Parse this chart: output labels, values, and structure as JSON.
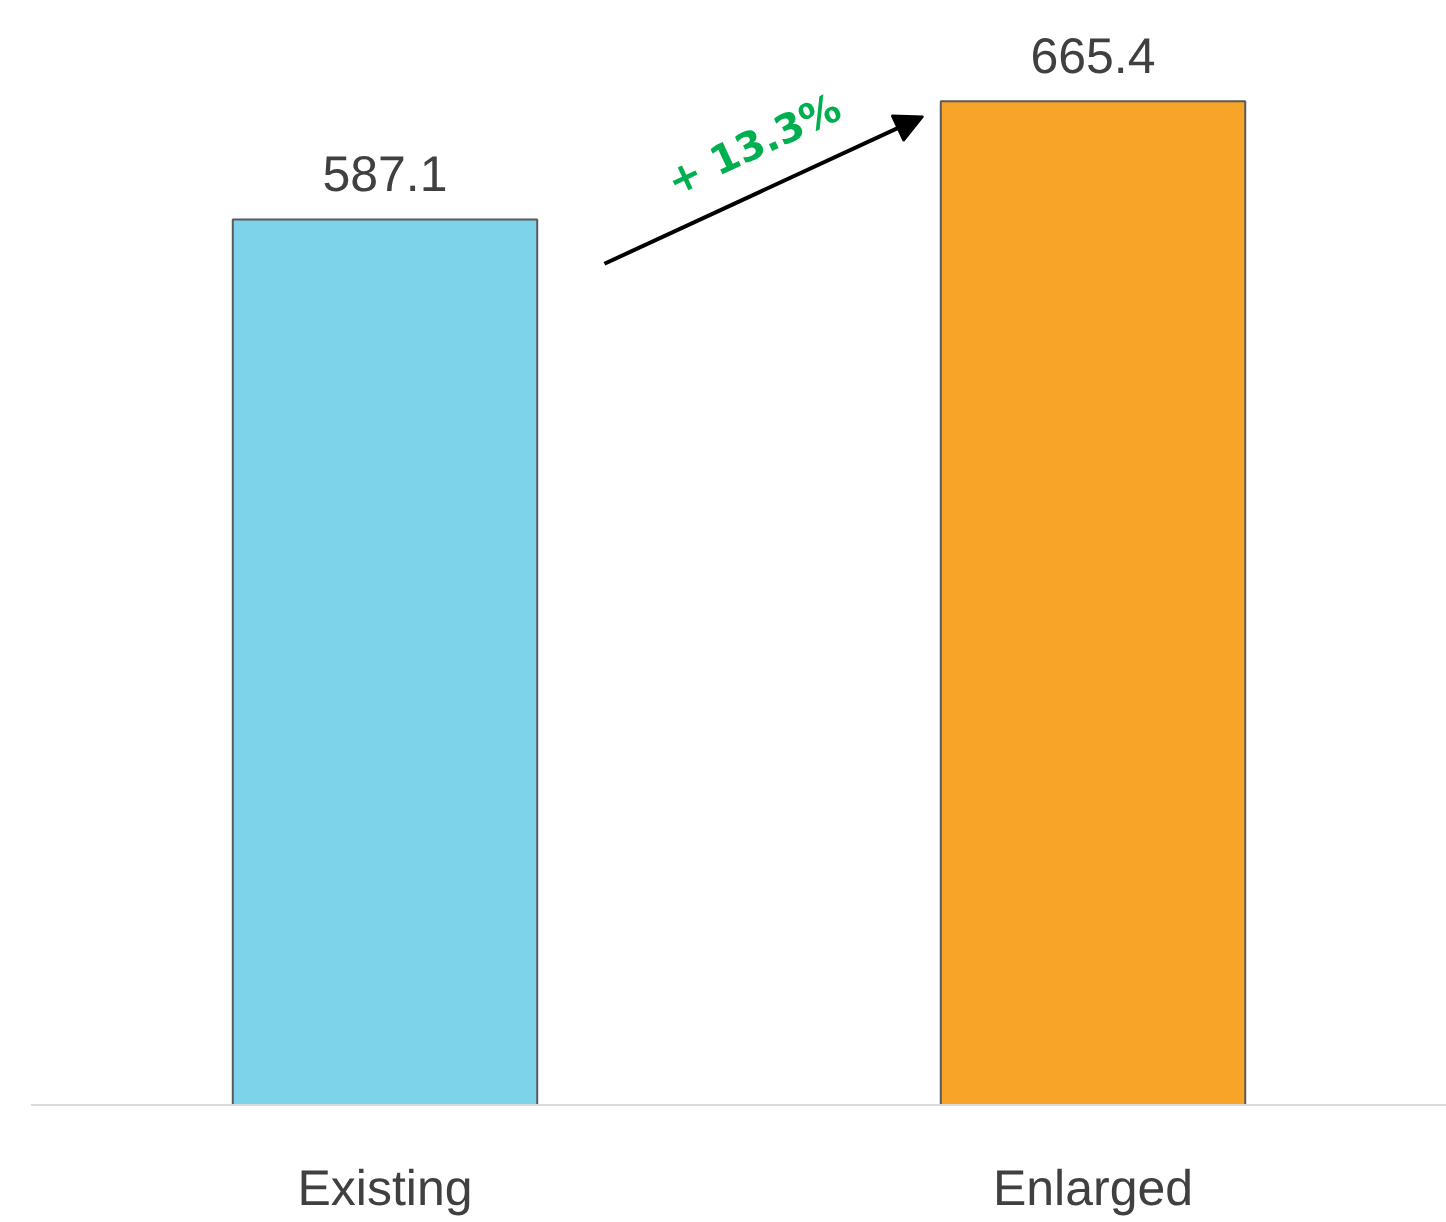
{
  "chart_data": {
    "type": "bar",
    "categories": [
      "Existing",
      "Enlarged"
    ],
    "values": [
      587.1,
      665.4
    ],
    "colors": [
      "#7dd3ea",
      "#f7a428"
    ],
    "data_labels": true,
    "annotations": [
      "+ 13.3%"
    ]
  }
}
